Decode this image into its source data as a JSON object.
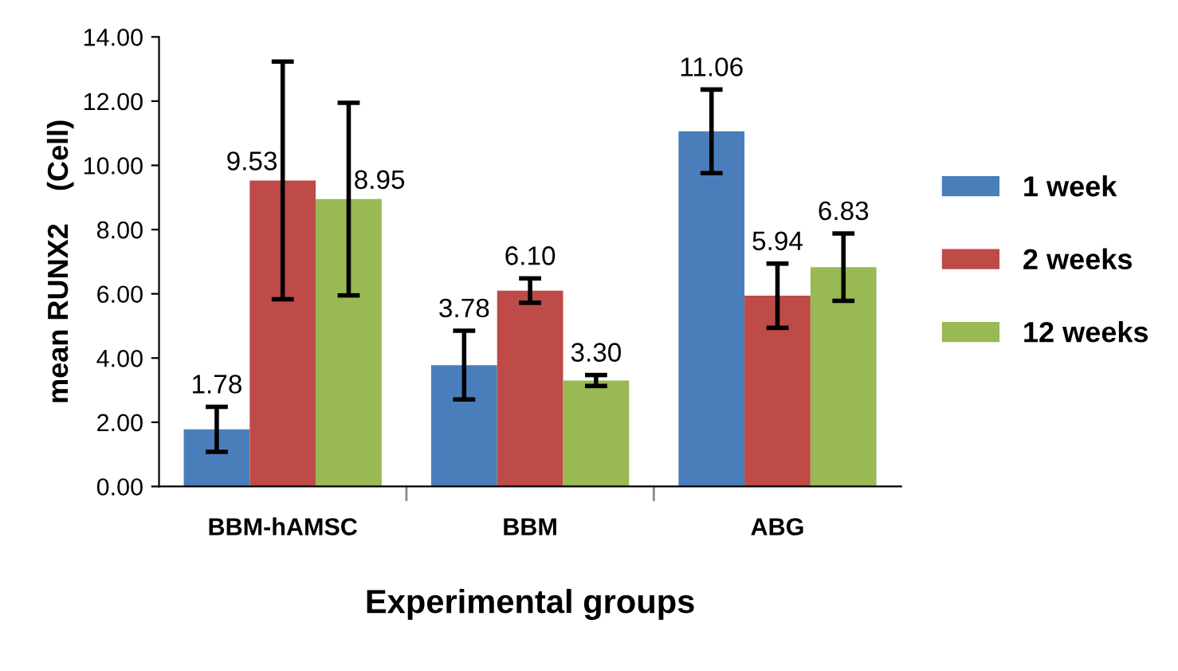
{
  "chart_data": {
    "type": "bar",
    "categories": [
      "BBM-hAMSC",
      "BBM",
      "ABG"
    ],
    "xlabel": "Experimental groups",
    "ylabel": "mean RUNX2    (Cell)",
    "series": [
      {
        "name": "1 week",
        "color": "#4a7ebb",
        "values": [
          1.78,
          3.78,
          11.06
        ],
        "value_labels": [
          "1.78",
          "3.78",
          "11.06"
        ],
        "errors": [
          0.7,
          1.07,
          1.3
        ]
      },
      {
        "name": "2 weeks",
        "color": "#be4b48",
        "values": [
          9.53,
          6.1,
          5.94
        ],
        "value_labels": [
          "9.53",
          "6.10",
          "5.94"
        ],
        "errors": [
          3.7,
          0.38,
          1.0
        ]
      },
      {
        "name": "12 weeks",
        "color": "#98b954",
        "values": [
          8.95,
          3.3,
          6.83
        ],
        "value_labels": [
          "8.95",
          "3.30",
          "6.83"
        ],
        "errors": [
          3.0,
          0.17,
          1.05
        ]
      }
    ],
    "ylim": [
      0,
      14
    ],
    "yticks": [
      {
        "value": 0,
        "label": "0.00"
      },
      {
        "value": 2,
        "label": "2.00"
      },
      {
        "value": 4,
        "label": "4.00"
      },
      {
        "value": 6,
        "label": "6.00"
      },
      {
        "value": 8,
        "label": "8.00"
      },
      {
        "value": 10,
        "label": "10.00"
      },
      {
        "value": 12,
        "label": "12.00"
      },
      {
        "value": 14,
        "label": "14.00"
      }
    ],
    "grid": false,
    "legend": "right"
  }
}
